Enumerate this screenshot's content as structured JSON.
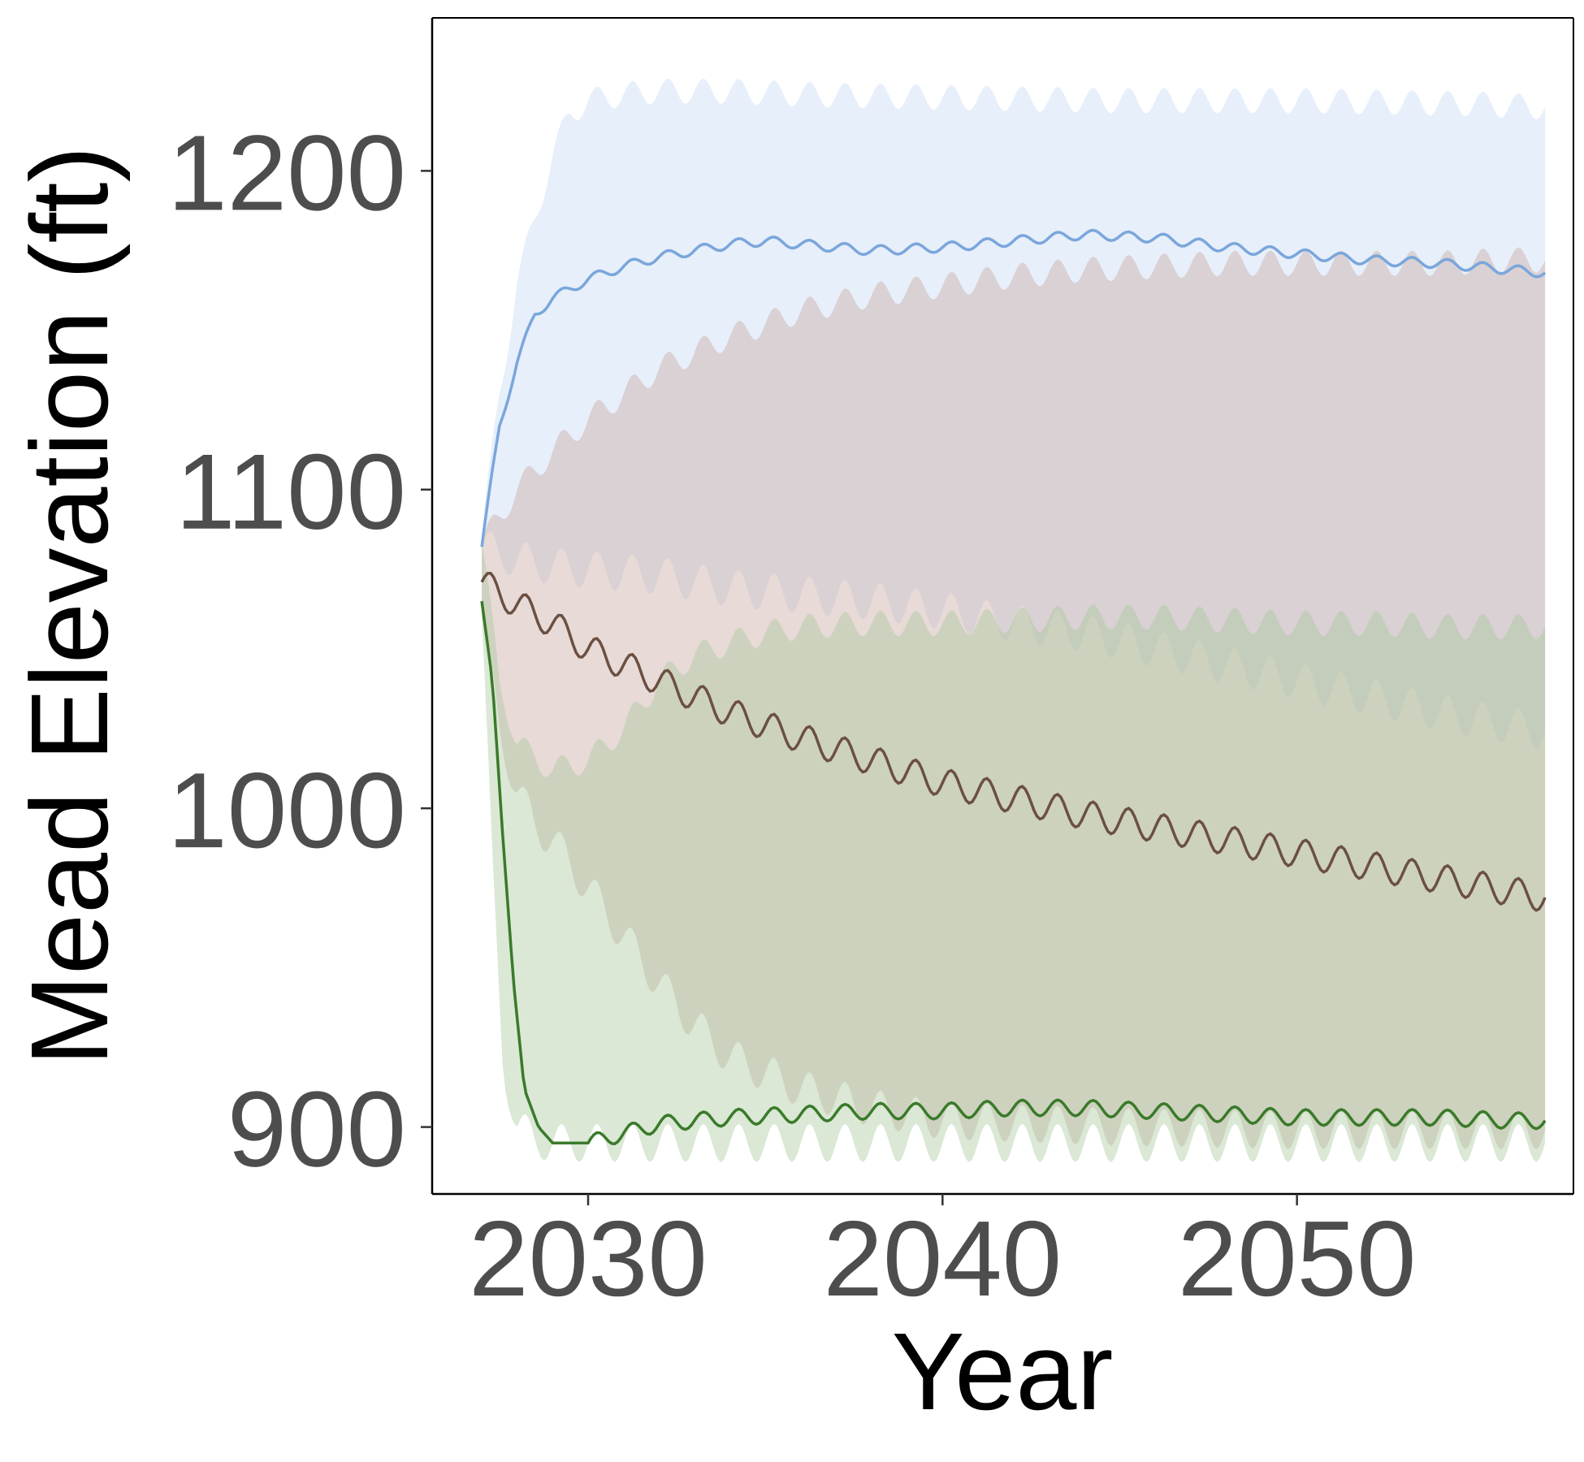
{
  "chart_data": {
    "type": "line",
    "title": "",
    "xlabel": "Year",
    "ylabel": "Mead Elevation (ft)",
    "xlim": [
      2025.6,
      2057.8
    ],
    "ylim": [
      879,
      1248
    ],
    "x_ticks": [
      2030,
      2040,
      2050
    ],
    "x_tick_labels": [
      "2030",
      "2040",
      "2050"
    ],
    "y_ticks": [
      900,
      1000,
      1100,
      1200
    ],
    "y_tick_labels": [
      "900",
      "1000",
      "1100",
      "1200"
    ],
    "grid": false,
    "legend": "none",
    "series": [
      {
        "color": "#7aa6db",
        "fill": "#c6d8f4",
        "median": {
          "x": [
            2027.0,
            2027.5,
            2028.0,
            2028.5,
            2029.0,
            2030.0,
            2031.0,
            2032.0,
            2033.0,
            2034.0,
            2035.0,
            2036.0,
            2038.0,
            2040.0,
            2042.0,
            2044.0,
            2046.0,
            2048.0,
            2050.0,
            2052.0,
            2054.0,
            2056.0,
            2057.0
          ],
          "y": [
            1082,
            1120,
            1140,
            1155,
            1160,
            1166,
            1170,
            1173,
            1175,
            1177,
            1178,
            1177,
            1175,
            1176,
            1178,
            1180,
            1179,
            1176,
            1174,
            1172,
            1171,
            1169,
            1168
          ]
        },
        "upper": {
          "x": [
            2027.0,
            2027.5,
            2028.0,
            2028.5,
            2029.0,
            2029.5,
            2030.0,
            2031.0,
            2032.0,
            2034.0,
            2036.0,
            2040.0,
            2045.0,
            2050.0,
            2055.0,
            2057.0
          ],
          "y": [
            1085,
            1130,
            1165,
            1185,
            1205,
            1218,
            1222,
            1224,
            1225,
            1225,
            1224,
            1223,
            1222,
            1222,
            1221,
            1220
          ]
        },
        "lower": {
          "x": [
            2027.0,
            2027.5,
            2028.0,
            2029.0,
            2030.0,
            2031.0,
            2032.0,
            2033.0,
            2034.0,
            2036.0,
            2038.0,
            2040.0,
            2042.0,
            2044.0,
            2046.0,
            2048.0,
            2050.0,
            2052.0,
            2054.0,
            2056.0,
            2057.0
          ],
          "y": [
            1082,
            1080,
            1078,
            1076,
            1075,
            1074,
            1073,
            1071,
            1069,
            1067,
            1065,
            1062,
            1058,
            1055,
            1050,
            1045,
            1040,
            1035,
            1030,
            1026,
            1024
          ]
        }
      },
      {
        "color": "#6b5041",
        "fill": "#c9a8a0",
        "median": {
          "x": [
            2027.0,
            2028.0,
            2029.0,
            2030.0,
            2031.0,
            2032.0,
            2033.0,
            2034.0,
            2035.0,
            2036.0,
            2038.0,
            2040.0,
            2042.0,
            2044.0,
            2046.0,
            2048.0,
            2050.0,
            2052.0,
            2054.0,
            2056.0,
            2057.0
          ],
          "y": [
            1071,
            1064,
            1058,
            1050,
            1045,
            1040,
            1035,
            1030,
            1026,
            1022,
            1015,
            1008,
            1003,
            998,
            994,
            990,
            986,
            982,
            978,
            974,
            972
          ]
        },
        "upper": {
          "x": [
            2027.0,
            2028.0,
            2029.0,
            2030.0,
            2031.0,
            2032.0,
            2033.0,
            2034.0,
            2035.0,
            2036.0,
            2038.0,
            2040.0,
            2042.0,
            2044.0,
            2046.0,
            2048.0,
            2050.0,
            2052.0,
            2054.0,
            2056.0,
            2057.0
          ],
          "y": [
            1083,
            1100,
            1112,
            1122,
            1130,
            1138,
            1143,
            1148,
            1152,
            1156,
            1161,
            1164,
            1167,
            1169,
            1170,
            1171,
            1171,
            1171,
            1171,
            1172,
            1172
          ]
        },
        "lower": {
          "x": [
            2027.0,
            2027.5,
            2028.0,
            2028.5,
            2029.0,
            2030.0,
            2031.0,
            2032.0,
            2033.0,
            2034.0,
            2036.0,
            2038.0,
            2040.0,
            2045.0,
            2050.0,
            2057.0
          ],
          "y": [
            1060,
            1025,
            1005,
            995,
            990,
            975,
            960,
            945,
            932,
            922,
            912,
            906,
            902,
            900,
            899,
            899
          ]
        }
      },
      {
        "color": "#3a7a2a",
        "fill": "#a6c99a",
        "median": {
          "x": [
            2027.0,
            2027.3,
            2027.6,
            2027.9,
            2028.2,
            2028.6,
            2029.0,
            2029.5,
            2030.0,
            2031.0,
            2032.0,
            2033.0,
            2034.0,
            2036.0,
            2038.0,
            2040.0,
            2042.0,
            2044.0,
            2046.0,
            2048.0,
            2050.0,
            2052.0,
            2054.0,
            2056.0,
            2057.0
          ],
          "y": [
            1065,
            1040,
            990,
            945,
            912,
            900,
            895,
            895,
            895,
            898,
            901,
            902,
            903,
            904,
            905,
            905,
            906,
            906,
            905,
            904,
            903,
            903,
            903,
            902,
            902
          ]
        },
        "upper": {
          "x": [
            2027.0,
            2027.5,
            2028.0,
            2029.0,
            2030.0,
            2031.0,
            2032.0,
            2033.0,
            2034.0,
            2035.0,
            2036.0,
            2038.0,
            2040.0,
            2042.0,
            2044.0,
            2046.0,
            2048.0,
            2050.0,
            2052.0,
            2054.0,
            2056.0,
            2057.0
          ],
          "y": [
            1083,
            1040,
            1020,
            1012,
            1015,
            1025,
            1040,
            1048,
            1052,
            1055,
            1057,
            1058,
            1058,
            1059,
            1060,
            1060,
            1059,
            1058,
            1058,
            1057,
            1057,
            1057
          ]
        },
        "lower": {
          "x": [
            2027.0,
            2027.3,
            2027.6,
            2028.0,
            2028.5,
            2029.0,
            2057.0
          ],
          "y": [
            1060,
            980,
            920,
            900,
            896,
            895,
            895
          ]
        }
      }
    ]
  }
}
